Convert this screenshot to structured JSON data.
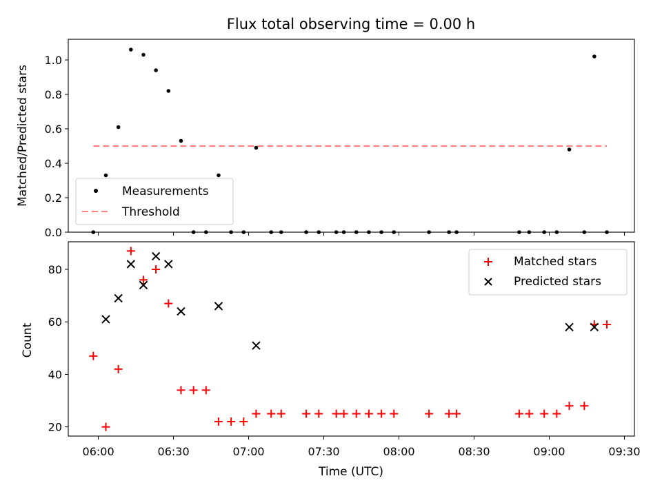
{
  "chart_data": [
    {
      "type": "scatter",
      "title": "Flux total observing time = 0.00 h",
      "xlabel": "",
      "ylabel": "Matched/Predicted stars",
      "xlim": [
        "05:48",
        "09:34"
      ],
      "ylim": [
        0,
        1.12
      ],
      "y_ticks": [
        "0.0",
        "0.2",
        "0.4",
        "0.6",
        "0.8",
        "1.0"
      ],
      "grid": false,
      "legend_position": "bottom-left",
      "series": [
        {
          "name": "Measurements",
          "marker": "dot",
          "color": "#000000",
          "points": [
            [
              "05:58",
              0.0
            ],
            [
              "06:03",
              0.33
            ],
            [
              "06:08",
              0.61
            ],
            [
              "06:13",
              1.06
            ],
            [
              "06:18",
              1.03
            ],
            [
              "06:23",
              0.94
            ],
            [
              "06:28",
              0.82
            ],
            [
              "06:33",
              0.53
            ],
            [
              "06:38",
              0.0
            ],
            [
              "06:43",
              0.0
            ],
            [
              "06:48",
              0.33
            ],
            [
              "06:53",
              0.0
            ],
            [
              "06:58",
              0.0
            ],
            [
              "07:03",
              0.49
            ],
            [
              "07:09",
              0.0
            ],
            [
              "07:13",
              0.0
            ],
            [
              "07:23",
              0.0
            ],
            [
              "07:28",
              0.0
            ],
            [
              "07:35",
              0.0
            ],
            [
              "07:38",
              0.0
            ],
            [
              "07:43",
              0.0
            ],
            [
              "07:48",
              0.0
            ],
            [
              "07:53",
              0.0
            ],
            [
              "07:58",
              0.0
            ],
            [
              "08:12",
              0.0
            ],
            [
              "08:20",
              0.0
            ],
            [
              "08:23",
              0.0
            ],
            [
              "08:48",
              0.0
            ],
            [
              "08:52",
              0.0
            ],
            [
              "08:58",
              0.0
            ],
            [
              "09:03",
              0.0
            ],
            [
              "09:08",
              0.48
            ],
            [
              "09:14",
              0.0
            ],
            [
              "09:18",
              1.02
            ],
            [
              "09:23",
              0.0
            ]
          ]
        },
        {
          "name": "Threshold",
          "type": "line",
          "style": "dashed",
          "color": "#ff7f7f",
          "points": [
            [
              "05:58",
              0.5
            ],
            [
              "09:23",
              0.5
            ]
          ]
        }
      ]
    },
    {
      "type": "scatter",
      "title": "",
      "xlabel": "Time (UTC)",
      "ylabel": "Count",
      "xlim": [
        "05:48",
        "09:34"
      ],
      "ylim": [
        16.5,
        90.5
      ],
      "y_ticks": [
        "20",
        "40",
        "60",
        "80"
      ],
      "x_ticks": [
        "06:00",
        "06:30",
        "07:00",
        "07:30",
        "08:00",
        "08:30",
        "09:00",
        "09:30"
      ],
      "grid": false,
      "legend_position": "top-right",
      "series": [
        {
          "name": "Matched stars",
          "marker": "plus",
          "color": "#ff0000",
          "points": [
            [
              "05:58",
              47
            ],
            [
              "06:03",
              20
            ],
            [
              "06:08",
              42
            ],
            [
              "06:13",
              87
            ],
            [
              "06:18",
              76
            ],
            [
              "06:23",
              80
            ],
            [
              "06:28",
              67
            ],
            [
              "06:33",
              34
            ],
            [
              "06:38",
              34
            ],
            [
              "06:43",
              34
            ],
            [
              "06:48",
              22
            ],
            [
              "06:53",
              22
            ],
            [
              "06:58",
              22
            ],
            [
              "07:03",
              25
            ],
            [
              "07:09",
              25
            ],
            [
              "07:13",
              25
            ],
            [
              "07:23",
              25
            ],
            [
              "07:28",
              25
            ],
            [
              "07:35",
              25
            ],
            [
              "07:38",
              25
            ],
            [
              "07:43",
              25
            ],
            [
              "07:48",
              25
            ],
            [
              "07:53",
              25
            ],
            [
              "07:58",
              25
            ],
            [
              "08:12",
              25
            ],
            [
              "08:20",
              25
            ],
            [
              "08:23",
              25
            ],
            [
              "08:48",
              25
            ],
            [
              "08:52",
              25
            ],
            [
              "08:58",
              25
            ],
            [
              "09:03",
              25
            ],
            [
              "09:08",
              28
            ],
            [
              "09:14",
              28
            ],
            [
              "09:18",
              59
            ],
            [
              "09:23",
              59
            ]
          ]
        },
        {
          "name": "Predicted stars",
          "marker": "x",
          "color": "#000000",
          "points": [
            [
              "06:03",
              61
            ],
            [
              "06:08",
              69
            ],
            [
              "06:13",
              82
            ],
            [
              "06:18",
              74
            ],
            [
              "06:23",
              85
            ],
            [
              "06:28",
              82
            ],
            [
              "06:33",
              64
            ],
            [
              "06:48",
              66
            ],
            [
              "07:03",
              51
            ],
            [
              "09:08",
              58
            ],
            [
              "09:18",
              58
            ]
          ]
        }
      ]
    }
  ]
}
